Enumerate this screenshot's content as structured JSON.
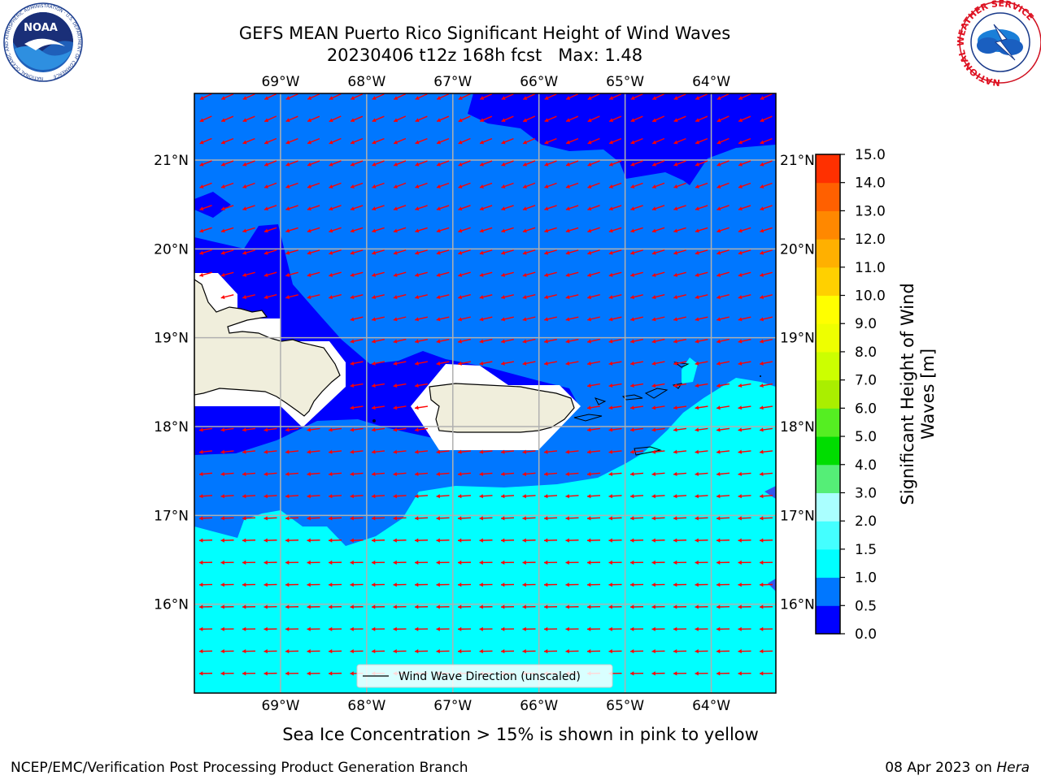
{
  "title": {
    "line1": "GEFS MEAN Puerto Rico Significant Height of Wind Waves",
    "line2": "20230406 t12z 168h fcst   Max: 1.48"
  },
  "logos": {
    "noaa": {
      "text": "NOAA",
      "ring_text": "NATIONAL OCEANIC AND ATMOSPHERIC ADMINISTRATION · U.S. DEPARTMENT OF COMMERCE"
    },
    "nws": {
      "ring_text": "NATIONAL WEATHER SERVICE"
    }
  },
  "map": {
    "lon_labels": [
      "69°W",
      "68°W",
      "67°W",
      "66°W",
      "65°W",
      "64°W"
    ],
    "lat_labels": [
      "21°N",
      "20°N",
      "19°N",
      "18°N",
      "17°N",
      "16°N"
    ],
    "lon_values": [
      -69,
      -68,
      -67,
      -66,
      -65,
      -64
    ],
    "lat_values": [
      21,
      20,
      19,
      18,
      17,
      16
    ],
    "extent": {
      "lon": [
        -70,
        -63.25
      ],
      "lat": [
        15,
        21.75
      ]
    },
    "arrow_color": "#ff0000",
    "land_color": "#f0eedc",
    "legend_label": "Wind Wave Direction (unscaled)"
  },
  "colorbar": {
    "label_line1": "Significant Height of Wind",
    "label_line2": "Waves [m]",
    "ticks": [
      "0.0",
      "0.5",
      "1.0",
      "1.5",
      "2.0",
      "3.0",
      "4.0",
      "5.0",
      "6.0",
      "7.0",
      "8.0",
      "9.0",
      "10.0",
      "11.0",
      "12.0",
      "13.0",
      "14.0",
      "15.0"
    ],
    "colors": [
      "#0000ff",
      "#0077ff",
      "#00ffff",
      "#44ffff",
      "#aaffff",
      "#55ee77",
      "#00dd00",
      "#55ee22",
      "#aaee00",
      "#ccff00",
      "#eeff00",
      "#ffff00",
      "#ffd000",
      "#ffb000",
      "#ff8800",
      "#ff6000",
      "#ff3000",
      "#ff0000"
    ]
  },
  "chart_data": {
    "type": "heatmap",
    "title": "GEFS MEAN Puerto Rico Significant Height of Wind Waves",
    "subtitle": "20230406 t12z 168h fcst   Max: 1.48",
    "variable": "Significant Height of Wind Waves",
    "units": "m",
    "max": 1.48,
    "levels": [
      0.0,
      0.5,
      1.0,
      1.5,
      2.0,
      3.0,
      4.0,
      5.0,
      6.0,
      7.0,
      8.0,
      9.0,
      10.0,
      11.0,
      12.0,
      13.0,
      14.0,
      15.0
    ],
    "region_values": [
      {
        "region": "north of 20.9°N east of 66.8°W",
        "range": [
          0.0,
          0.5
        ]
      },
      {
        "region": "north of Hispaniola and Puerto Rico",
        "range": [
          0.0,
          0.5
        ]
      },
      {
        "region": "open Atlantic 19–21°N",
        "range": [
          0.5,
          1.0
        ]
      },
      {
        "region": "Caribbean south of 17°N",
        "range": [
          1.0,
          1.5
        ]
      }
    ],
    "wave_direction": "toward west-southwest in the north, toward west in the south",
    "legend": [
      "Wind Wave Direction (unscaled)"
    ]
  },
  "footer": {
    "ice_note": "Sea Ice Concentration > 15% is shown in pink to yellow",
    "credit": "NCEP/EMC/Verification Post Processing Product Generation Branch",
    "date": "08 Apr 2023 on ",
    "machine": "Hera"
  }
}
